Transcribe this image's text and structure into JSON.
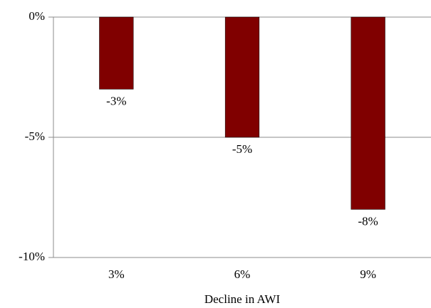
{
  "chart_data": {
    "type": "bar",
    "x_label": "Decline in AWI",
    "categories": [
      "3%",
      "6%",
      "9%"
    ],
    "values": [
      -3,
      -5,
      -8
    ],
    "value_labels": [
      "-3%",
      "-5%",
      "-8%"
    ],
    "color": "#800000",
    "ylim": [
      -10,
      0
    ],
    "yticks": [
      {
        "value": 0,
        "label": "0%"
      },
      {
        "value": -5,
        "label": "-5%"
      },
      {
        "value": -10,
        "label": "-10%"
      }
    ],
    "grid": true
  }
}
